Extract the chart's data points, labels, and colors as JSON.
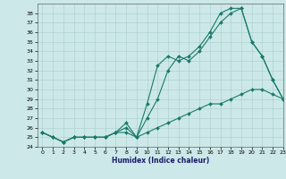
{
  "title": "",
  "xlabel": "Humidex (Indice chaleur)",
  "bg_color": "#cce8e8",
  "grid_color": "#aacccc",
  "line_color": "#1a7a6a",
  "ylim": [
    24,
    39
  ],
  "xlim": [
    -0.5,
    23
  ],
  "yticks": [
    24,
    25,
    26,
    27,
    28,
    29,
    30,
    31,
    32,
    33,
    34,
    35,
    36,
    37,
    38
  ],
  "xticks": [
    0,
    1,
    2,
    3,
    4,
    5,
    6,
    7,
    8,
    9,
    10,
    11,
    12,
    13,
    14,
    15,
    16,
    17,
    18,
    19,
    20,
    21,
    22,
    23
  ],
  "line_top": {
    "x": [
      0,
      1,
      2,
      3,
      4,
      5,
      6,
      7,
      8,
      9,
      10,
      11,
      12,
      13,
      14,
      15,
      16,
      17,
      18,
      19,
      20,
      21,
      22,
      23
    ],
    "y": [
      25.5,
      25.0,
      24.5,
      25.0,
      25.0,
      25.0,
      25.0,
      25.5,
      26.5,
      25.0,
      28.5,
      32.5,
      33.5,
      33.0,
      33.5,
      34.5,
      36.0,
      38.0,
      38.5,
      38.5,
      35.0,
      33.5,
      31.0,
      29.0
    ]
  },
  "line_mid": {
    "x": [
      0,
      1,
      2,
      3,
      4,
      5,
      6,
      7,
      8,
      9,
      10,
      11,
      12,
      13,
      14,
      15,
      16,
      17,
      18,
      19,
      20,
      21,
      22,
      23
    ],
    "y": [
      25.5,
      25.0,
      24.5,
      25.0,
      25.0,
      25.0,
      25.0,
      25.5,
      26.0,
      25.0,
      27.0,
      29.0,
      32.0,
      33.5,
      33.0,
      34.0,
      35.5,
      37.0,
      38.0,
      38.5,
      35.0,
      33.5,
      31.0,
      29.0
    ]
  },
  "line_bot": {
    "x": [
      0,
      1,
      2,
      3,
      4,
      5,
      6,
      7,
      8,
      9,
      10,
      11,
      12,
      13,
      14,
      15,
      16,
      17,
      18,
      19,
      20,
      21,
      22,
      23
    ],
    "y": [
      25.5,
      25.0,
      24.5,
      25.0,
      25.0,
      25.0,
      25.0,
      25.5,
      25.5,
      25.0,
      25.5,
      26.0,
      26.5,
      27.0,
      27.5,
      28.0,
      28.5,
      28.5,
      29.0,
      29.5,
      30.0,
      30.0,
      29.5,
      29.0
    ]
  }
}
